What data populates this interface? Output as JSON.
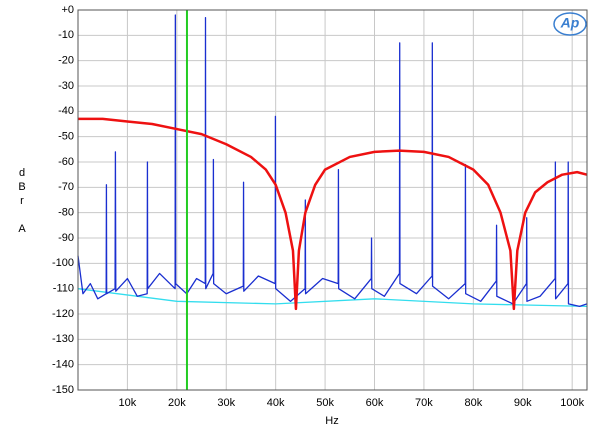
{
  "chart_data": {
    "type": "line",
    "logo": "Ap",
    "x_label": "Hz",
    "y_label": "dBr",
    "y_label_2": "A",
    "xlim": [
      0,
      103000
    ],
    "ylim": [
      -150,
      0
    ],
    "xticks": [
      {
        "value": 10000,
        "label": "10k"
      },
      {
        "value": 20000,
        "label": "20k"
      },
      {
        "value": 30000,
        "label": "30k"
      },
      {
        "value": 40000,
        "label": "40k"
      },
      {
        "value": 50000,
        "label": "50k"
      },
      {
        "value": 60000,
        "label": "60k"
      },
      {
        "value": 70000,
        "label": "70k"
      },
      {
        "value": 80000,
        "label": "80k"
      },
      {
        "value": 90000,
        "label": "90k"
      },
      {
        "value": 100000,
        "label": "100k"
      }
    ],
    "yticks": [
      {
        "value": 0,
        "label": "+0"
      },
      -10,
      -20,
      -30,
      -40,
      -50,
      -60,
      -70,
      -80,
      -90,
      -100,
      -110,
      -120,
      -130,
      -140,
      -150
    ],
    "grid": true,
    "marker_line": {
      "x": 22050,
      "color": "#22cc22"
    },
    "series": [
      {
        "color": "#33ddee",
        "x": [
          0,
          20000,
          40000,
          60000,
          80000,
          103000
        ],
        "values": [
          -110,
          -115,
          -116,
          -114,
          -116,
          -117
        ]
      },
      {
        "color": "#1a2fd0",
        "x": [
          0,
          1000,
          2500,
          4000,
          5700,
          5750,
          5800,
          7500,
          7570,
          7650,
          10000,
          12000,
          14000,
          14050,
          14100,
          16500,
          19650,
          19700,
          19750,
          22000,
          24000,
          25750,
          25800,
          25850,
          27350,
          27400,
          27450,
          30000,
          33450,
          33500,
          33550,
          36500,
          39900,
          39950,
          40000,
          43000,
          45950,
          46000,
          46050,
          49500,
          52650,
          52700,
          52750,
          56000,
          59350,
          59400,
          59450,
          62000,
          65050,
          65100,
          65150,
          68500,
          71650,
          71700,
          71750,
          75000,
          78350,
          78400,
          78450,
          81500,
          84650,
          84700,
          84750,
          88000,
          90750,
          90800,
          90850,
          93500,
          96550,
          96600,
          96650,
          99150,
          99200,
          99250,
          101500,
          103000
        ],
        "values": [
          -97,
          -112,
          -108,
          -114,
          -112,
          -69,
          -112,
          -110,
          -56,
          -111,
          -106,
          -113,
          -112,
          -60,
          -110,
          -104,
          -110,
          -2,
          -108,
          -112,
          -106,
          -108,
          -3,
          -110,
          -104,
          -59,
          -108,
          -112,
          -109,
          -68,
          -111,
          -105,
          -108,
          -42,
          -110,
          -115,
          -110,
          -75,
          -112,
          -106,
          -108,
          -63,
          -110,
          -114,
          -106,
          -90,
          -110,
          -113,
          -104,
          -13,
          -108,
          -112,
          -105,
          -13,
          -109,
          -114,
          -108,
          -61,
          -112,
          -115,
          -107,
          -85,
          -113,
          -116,
          -108,
          -82,
          -115,
          -113,
          -106,
          -60,
          -114,
          -108,
          -60,
          -116,
          -117,
          -116
        ]
      },
      {
        "color": "#ee1111",
        "x": [
          0,
          5000,
          10000,
          15000,
          20000,
          25000,
          30000,
          35000,
          38000,
          40000,
          42000,
          43500,
          44100,
          44700,
          46000,
          48000,
          50000,
          55000,
          60000,
          65000,
          70000,
          75000,
          80000,
          83000,
          85500,
          87500,
          88200,
          88900,
          90500,
          92500,
          95000,
          98000,
          101000,
          103000
        ],
        "values": [
          -43,
          -43,
          -44,
          -45,
          -47,
          -49,
          -53,
          -58,
          -63,
          -69,
          -80,
          -95,
          -118,
          -95,
          -80,
          -69,
          -63,
          -58,
          -56,
          -55.5,
          -56,
          -58,
          -63,
          -69,
          -80,
          -95,
          -118,
          -95,
          -80,
          -72,
          -68,
          -65,
          -64,
          -65
        ]
      }
    ]
  }
}
